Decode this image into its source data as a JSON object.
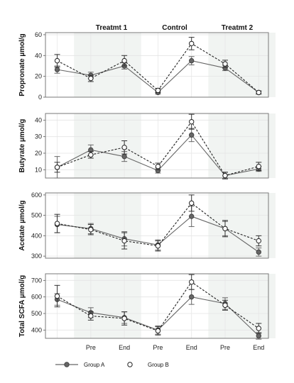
{
  "chart_data": {
    "type": "line",
    "phases": [
      "Treatmt 1",
      "Control",
      "Treatmt 2"
    ],
    "x_tick_labels": [
      "",
      "Pre",
      "End",
      "Pre",
      "End",
      "Pre",
      "End"
    ],
    "legend": {
      "placement": "bottom-left"
    },
    "series_styles": [
      {
        "name": "Group A",
        "line": "solid",
        "marker": "filled",
        "color": "#666666"
      },
      {
        "name": "Group B",
        "line": "dashed",
        "marker": "open",
        "color": "#222222"
      }
    ],
    "panels": [
      {
        "ylabel": "Propronate µmol/g",
        "ylim": [
          0,
          62
        ],
        "yticks": [
          0,
          20,
          40,
          60
        ],
        "series": [
          {
            "name": "Group A",
            "values": [
              26.5,
              21,
              30,
              4.5,
              35,
              28,
              4.5
            ],
            "errors": [
              3.5,
              3,
              3,
              1.5,
              4,
              2.5,
              1.5
            ]
          },
          {
            "name": "Group B",
            "values": [
              35,
              18,
              35,
              6.5,
              51.5,
              32,
              4.5
            ],
            "errors": [
              6,
              3,
              5,
              2,
              6,
              3.5,
              1.5
            ]
          }
        ]
      },
      {
        "ylabel": "Butyrate µmol/g",
        "ylim": [
          5,
          44
        ],
        "yticks": [
          10,
          20,
          30,
          40
        ],
        "series": [
          {
            "name": "Group A",
            "values": [
              11.5,
              22,
              18,
              9.5,
              31,
              6.5,
              10.5
            ],
            "errors": [
              6.5,
              3,
              3,
              1.5,
              4,
              2,
              1.5
            ]
          },
          {
            "name": "Group B",
            "values": [
              11.5,
              19,
              23.5,
              12,
              39,
              6.5,
              12
            ],
            "errors": [
              3,
              2,
              4,
              2,
              4.5,
              2,
              2.5
            ]
          }
        ]
      },
      {
        "ylabel": "Acetate µmol/g",
        "ylim": [
          290,
          610
        ],
        "yticks": [
          300,
          400,
          500,
          600
        ],
        "series": [
          {
            "name": "Group A",
            "values": [
              455,
              435,
              385,
              355,
              495,
              435,
              320
            ],
            "errors": [
              40,
              25,
              35,
              25,
              50,
              35,
              20
            ]
          },
          {
            "name": "Group B",
            "values": [
              460,
              430,
              375,
              350,
              560,
              435,
              375
            ],
            "errors": [
              45,
              25,
              40,
              25,
              40,
              40,
              25
            ]
          }
        ]
      },
      {
        "ylabel": "Total SCFA µmol/g",
        "ylim": [
          350,
          740
        ],
        "yticks": [
          400,
          500,
          600,
          700
        ],
        "series": [
          {
            "name": "Group A",
            "values": [
              585,
              505,
              475,
              400,
              600,
              560,
              365
            ],
            "errors": [
              35,
              30,
              35,
              25,
              45,
              35,
              20
            ]
          },
          {
            "name": "Group B",
            "values": [
              605,
              485,
              470,
              395,
              690,
              550,
              410
            ],
            "errors": [
              65,
              25,
              40,
              25,
              45,
              30,
              30
            ]
          }
        ]
      }
    ]
  }
}
